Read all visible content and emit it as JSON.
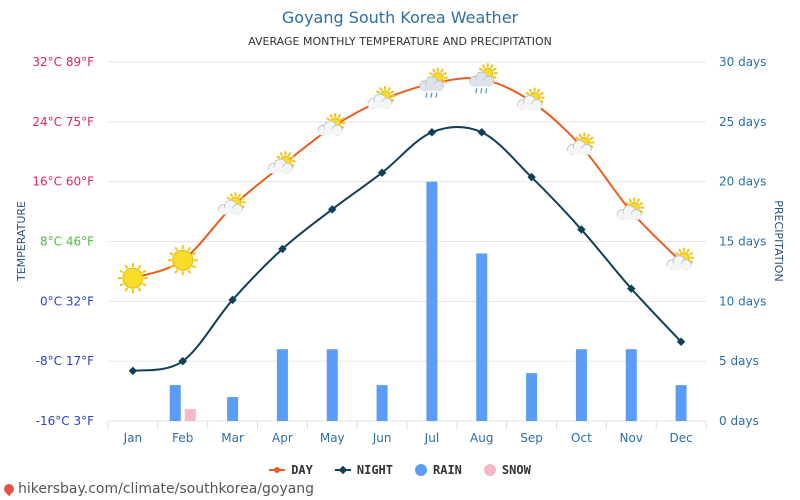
{
  "title": "Goyang South Korea Weather",
  "subtitle": "AVERAGE MONTHLY TEMPERATURE AND PRECIPITATION",
  "source": "hikersbay.com/climate/southkorea/goyang",
  "colors": {
    "day": "#ee5a1e",
    "night": "#103f57",
    "rain": "#5b9cf6",
    "snow": "#f8b8c8",
    "left_axis": [
      "#2b3fcc",
      "#2b3fcc",
      "#2b3fcc",
      "#4cbb3c",
      "#e0245e",
      "#e0245e",
      "#e0245e"
    ],
    "right_axis": "#2a6fa8"
  },
  "legend": [
    {
      "key": "day",
      "label": "DAY"
    },
    {
      "key": "night",
      "label": "NIGHT"
    },
    {
      "key": "rain",
      "label": "RAIN"
    },
    {
      "key": "snow",
      "label": "SNOW"
    }
  ],
  "chart_data": {
    "type": "line+bar",
    "categories": [
      "Jan",
      "Feb",
      "Mar",
      "Apr",
      "May",
      "Jun",
      "Jul",
      "Aug",
      "Sep",
      "Oct",
      "Nov",
      "Dec"
    ],
    "y_left": {
      "label": "TEMPERATURE",
      "range": [
        -16,
        32
      ],
      "ticks": [
        {
          "value": -16,
          "label": "-16°C 3°F"
        },
        {
          "value": -8,
          "label": "-8°C 17°F"
        },
        {
          "value": 0,
          "label": "0°C 32°F"
        },
        {
          "value": 8,
          "label": "8°C 46°F"
        },
        {
          "value": 16,
          "label": "16°C 60°F"
        },
        {
          "value": 24,
          "label": "24°C 75°F"
        },
        {
          "value": 32,
          "label": "32°C 89°F"
        }
      ]
    },
    "y_right": {
      "label": "PRECIPITATION",
      "range": [
        0,
        30
      ],
      "ticks": [
        {
          "value": 0,
          "label": "0 days"
        },
        {
          "value": 5,
          "label": "5 days"
        },
        {
          "value": 10,
          "label": "10 days"
        },
        {
          "value": 15,
          "label": "15 days"
        },
        {
          "value": 20,
          "label": "20 days"
        },
        {
          "value": 25,
          "label": "25 days"
        },
        {
          "value": 30,
          "label": "30 days"
        }
      ]
    },
    "series": [
      {
        "name": "DAY",
        "key": "day",
        "kind": "line",
        "axis": "left",
        "values": [
          3.1,
          5.5,
          12.7,
          18.2,
          23.3,
          26.9,
          29.1,
          29.7,
          26.7,
          20.7,
          12.0,
          5.3
        ]
      },
      {
        "name": "NIGHT",
        "key": "night",
        "kind": "line",
        "axis": "left",
        "values": [
          -9.3,
          -8.0,
          0.2,
          7.0,
          12.3,
          17.2,
          22.6,
          22.6,
          16.6,
          9.6,
          1.7,
          -5.4
        ]
      },
      {
        "name": "RAIN",
        "key": "rain",
        "kind": "bar",
        "axis": "right",
        "values": [
          0,
          3,
          2,
          6,
          6,
          3,
          20,
          14,
          4,
          6,
          6,
          3
        ]
      },
      {
        "name": "SNOW",
        "key": "snow",
        "kind": "bar",
        "axis": "right",
        "values": [
          0,
          1,
          0,
          0,
          0,
          0,
          0,
          0,
          0,
          0,
          0,
          0
        ]
      }
    ],
    "day_icons": [
      "sunny",
      "sunny",
      "partly-cloudy",
      "partly-cloudy",
      "partly-cloudy",
      "partly-cloudy",
      "rain-cloud",
      "rain-cloud",
      "partly-cloudy",
      "partly-cloudy",
      "partly-cloudy",
      "partly-cloudy"
    ]
  }
}
